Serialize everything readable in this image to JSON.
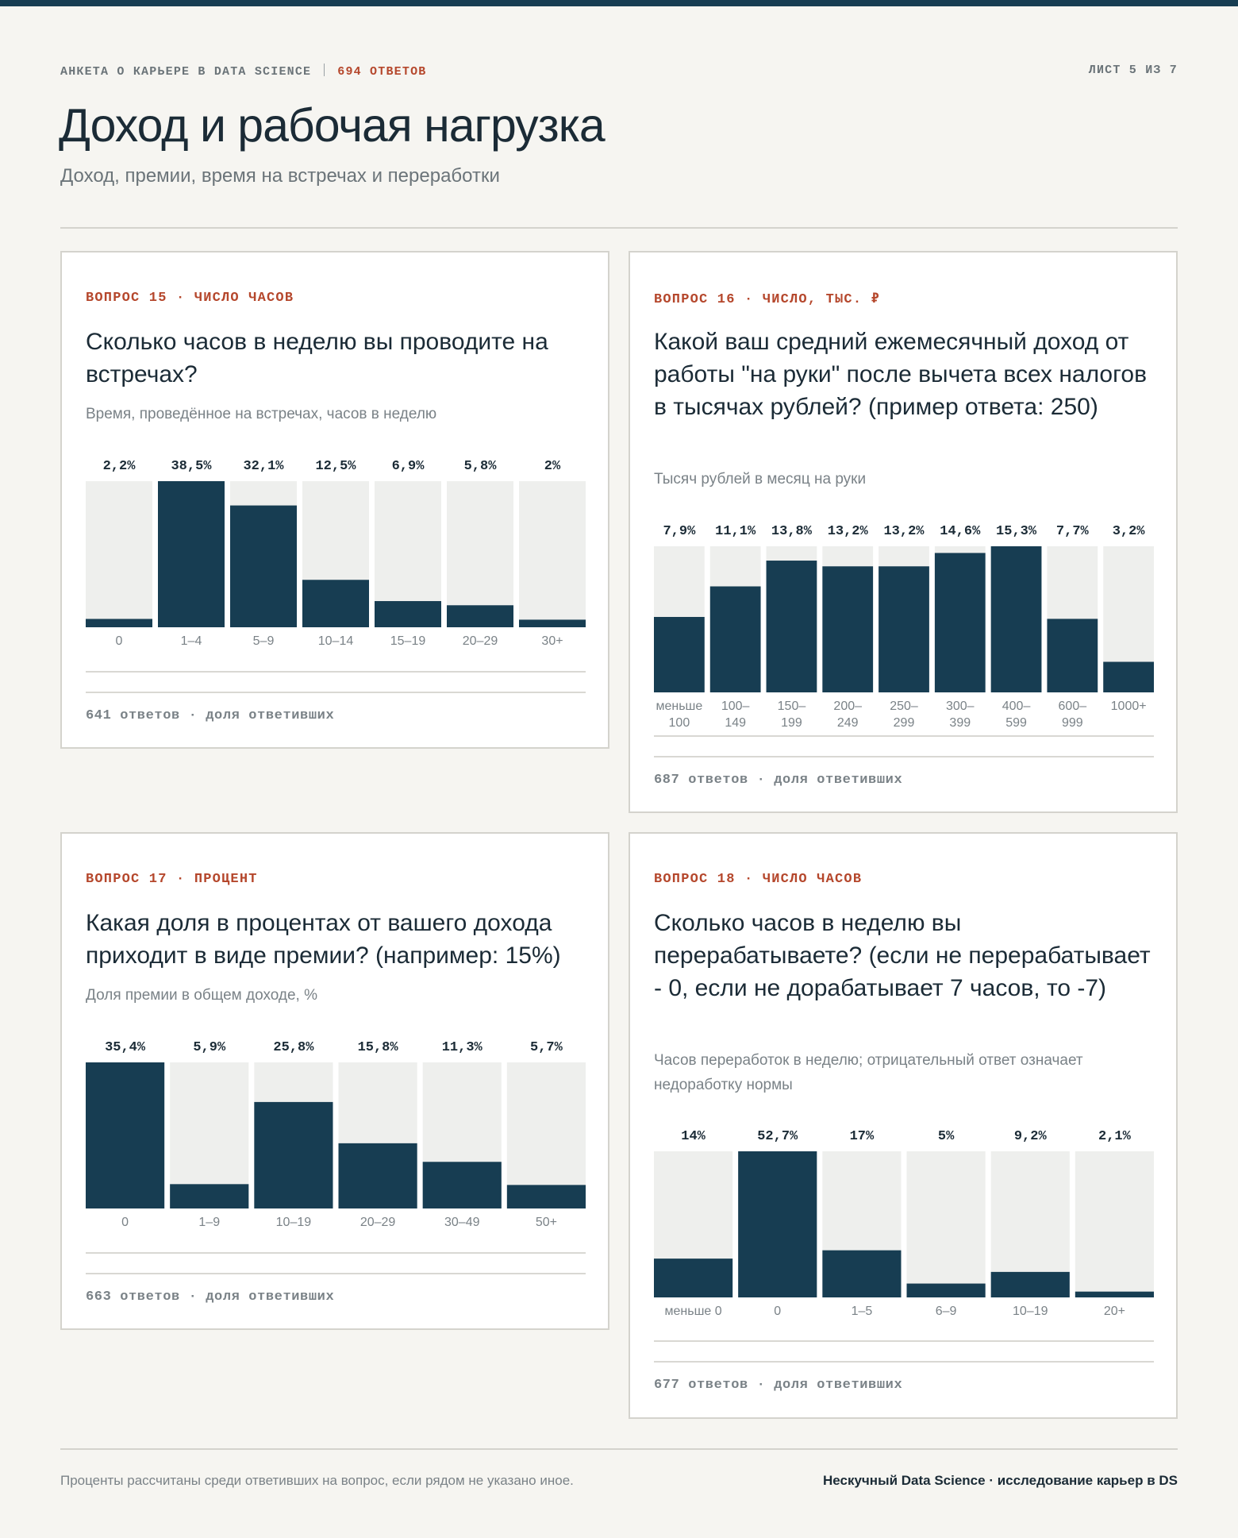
{
  "header": {
    "survey": "АНКЕТА О КАРЬЕРЕ В DATA SCIENCE",
    "responses": "694 ОТВЕТОВ",
    "page": "ЛИСТ 5 ИЗ 7",
    "title": "Доход и рабочая нагрузка",
    "subtitle": "Доход, премии, время на встречах и переработки"
  },
  "footer": {
    "note": "Проценты рассчитаны среди ответивших на вопрос, если рядом не указано иное.",
    "brand": "Нескучный Data Science · исследование карьер в DS"
  },
  "colors": {
    "bar": "#173d52",
    "track": "#eeefed",
    "accent": "#b5472c"
  },
  "chart_data": [
    {
      "type": "bar",
      "tag": "ВОПРОС 15 · ЧИСЛО ЧАСОВ",
      "title": "Сколько часов в неделю вы проводите на встречах?",
      "subtitle": "Время, проведённое на встречах, часов в неделю",
      "footer": "641 ответов · доля ответивших",
      "categories": [
        [
          "0"
        ],
        [
          "1–4"
        ],
        [
          "5–9"
        ],
        [
          "10–14"
        ],
        [
          "15–19"
        ],
        [
          "20–29"
        ],
        [
          "30+"
        ]
      ],
      "values": [
        2.2,
        38.5,
        32.1,
        12.5,
        6.9,
        5.8,
        2
      ],
      "labels": [
        "2,2%",
        "38,5%",
        "32,1%",
        "12,5%",
        "6,9%",
        "5,8%",
        "2%"
      ],
      "ylim": [
        0,
        38.5
      ]
    },
    {
      "type": "bar",
      "tag": "ВОПРОС 16 · ЧИСЛО, ТЫС. ₽",
      "title": "Какой ваш средний ежемесячный доход от работы \"на руки\" после вычета всех налогов в тысячах рублей? (пример ответа: 250)",
      "subtitle": "Тысяч рублей в месяц на руки",
      "footer": "687 ответов · доля ответивших",
      "categories": [
        [
          "меньше",
          "100"
        ],
        [
          "100–",
          "149"
        ],
        [
          "150–",
          "199"
        ],
        [
          "200–",
          "249"
        ],
        [
          "250–",
          "299"
        ],
        [
          "300–",
          "399"
        ],
        [
          "400–",
          "599"
        ],
        [
          "600–",
          "999"
        ],
        [
          "1000+"
        ]
      ],
      "values": [
        7.9,
        11.1,
        13.8,
        13.2,
        13.2,
        14.6,
        15.3,
        7.7,
        3.2
      ],
      "labels": [
        "7,9%",
        "11,1%",
        "13,8%",
        "13,2%",
        "13,2%",
        "14,6%",
        "15,3%",
        "7,7%",
        "3,2%"
      ],
      "ylim": [
        0,
        15.3
      ]
    },
    {
      "type": "bar",
      "tag": "ВОПРОС 17 · ПРОЦЕНТ",
      "title": "Какая доля в процентах от вашего дохода приходит в виде премии? (например: 15%)",
      "subtitle": "Доля премии в общем доходе, %",
      "footer": "663 ответов · доля ответивших",
      "categories": [
        [
          "0"
        ],
        [
          "1–9"
        ],
        [
          "10–19"
        ],
        [
          "20–29"
        ],
        [
          "30–49"
        ],
        [
          "50+"
        ]
      ],
      "values": [
        35.4,
        5.9,
        25.8,
        15.8,
        11.3,
        5.7
      ],
      "labels": [
        "35,4%",
        "5,9%",
        "25,8%",
        "15,8%",
        "11,3%",
        "5,7%"
      ],
      "ylim": [
        0,
        35.4
      ]
    },
    {
      "type": "bar",
      "tag": "ВОПРОС 18 · ЧИСЛО ЧАСОВ",
      "title": "Сколько часов в неделю вы перерабатываете? (если не перерабатывает - 0, если не дорабатывает 7 часов, то -7)",
      "subtitle": "Часов переработок в неделю; отрицательный ответ означает недоработку нормы",
      "footer": "677 ответов · доля ответивших",
      "categories": [
        [
          "меньше 0"
        ],
        [
          "0"
        ],
        [
          "1–5"
        ],
        [
          "6–9"
        ],
        [
          "10–19"
        ],
        [
          "20+"
        ]
      ],
      "values": [
        14,
        52.7,
        17,
        5,
        9.2,
        2.1
      ],
      "labels": [
        "14%",
        "52,7%",
        "17%",
        "5%",
        "9,2%",
        "2,1%"
      ],
      "ylim": [
        0,
        52.7
      ]
    }
  ]
}
